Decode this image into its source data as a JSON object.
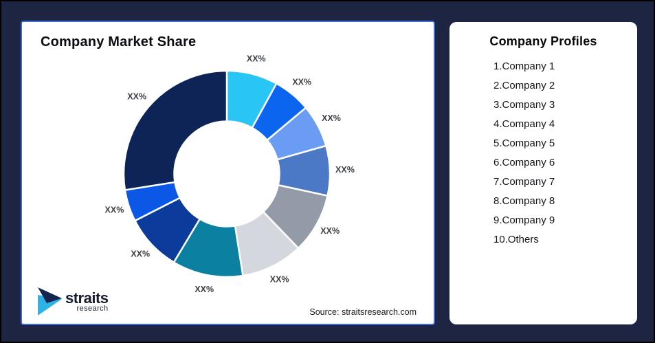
{
  "colors": {
    "background": "#1D2543",
    "panel_border": "#3E6AD5",
    "slice_label": "#3B3F46",
    "logo_navy": "#16254F",
    "logo_cyan": "#2CB3E8",
    "slice_gap": "#FFFFFF"
  },
  "left_panel": {
    "title": "Company Market Share",
    "source": "Source: straitsresearch.com"
  },
  "logo": {
    "brand": "straits",
    "sub": "research"
  },
  "right_panel": {
    "title": "Company Profiles",
    "items": [
      "1.Company 1",
      "2.Company 2",
      "3.Company 3",
      "4.Company 4",
      "5.Company 5",
      "6.Company 6",
      "7.Company 7",
      "8.Company 8",
      "9.Company 9",
      "10.Others"
    ]
  },
  "chart_data": {
    "type": "pie",
    "subtype": "donut",
    "title": "Company Market Share",
    "direction": "clockwise",
    "start_angle_deg": 0,
    "inner_radius_ratio": 0.51,
    "legend_position": "none",
    "labels": [
      "XX%",
      "XX%",
      "XX%",
      "XX%",
      "XX%",
      "XX%",
      "XX%",
      "XX%",
      "XX%",
      "XX%"
    ],
    "values_pct_estimated": [
      8,
      5.9,
      6.7,
      7.8,
      9.4,
      9.7,
      11.1,
      8.9,
      5,
      27.5
    ],
    "colors": [
      "#29C5F5",
      "#0B65EF",
      "#6B9CF4",
      "#4C79C6",
      "#949BA8",
      "#D4D7DE",
      "#0C80A0",
      "#0C3C9B",
      "#0B57E6",
      "#0E2356"
    ]
  }
}
